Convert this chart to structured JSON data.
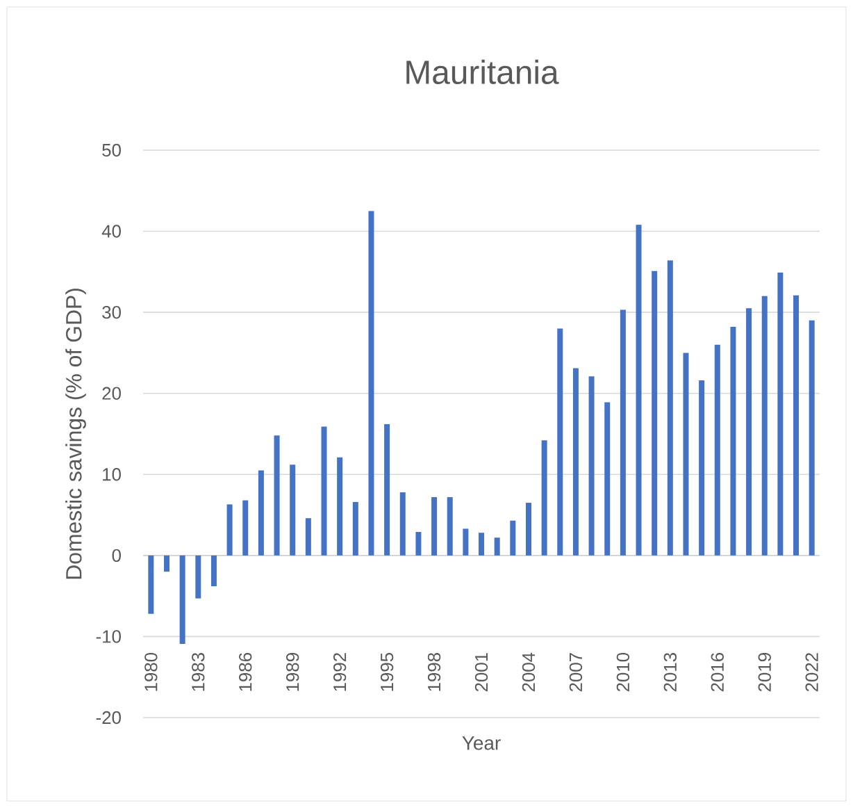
{
  "chart_data": {
    "type": "bar",
    "title": "Mauritania",
    "xlabel": "Year",
    "ylabel": "Domestic savings (% of GDP)",
    "categories": [
      "1980",
      null,
      null,
      "1983",
      null,
      null,
      "1986",
      null,
      null,
      "1989",
      null,
      null,
      "1992",
      null,
      null,
      "1995",
      null,
      null,
      "1998",
      null,
      null,
      "2001",
      null,
      null,
      "2004",
      null,
      null,
      "2007",
      null,
      null,
      "2010",
      null,
      null,
      "2013",
      null,
      null,
      "2016",
      null,
      null,
      "2019",
      null,
      null,
      "2022"
    ],
    "values": [
      -7.2,
      -2.0,
      -10.9,
      -5.3,
      -3.8,
      6.3,
      6.8,
      10.5,
      14.8,
      11.2,
      4.6,
      15.9,
      12.1,
      6.6,
      42.5,
      16.2,
      7.8,
      2.9,
      7.2,
      7.2,
      3.3,
      2.8,
      2.2,
      4.3,
      6.5,
      14.2,
      28.0,
      23.1,
      22.1,
      18.9,
      30.3,
      40.8,
      35.1,
      36.4,
      25.0,
      21.6,
      26.0,
      28.2,
      30.5,
      32.0,
      34.9,
      32.1,
      29.0
    ],
    "color": "#4472c4",
    "ylim": [
      -20,
      50
    ],
    "yticks": [
      -20,
      -10,
      0,
      10,
      20,
      30,
      40,
      50
    ],
    "grid": "y"
  }
}
